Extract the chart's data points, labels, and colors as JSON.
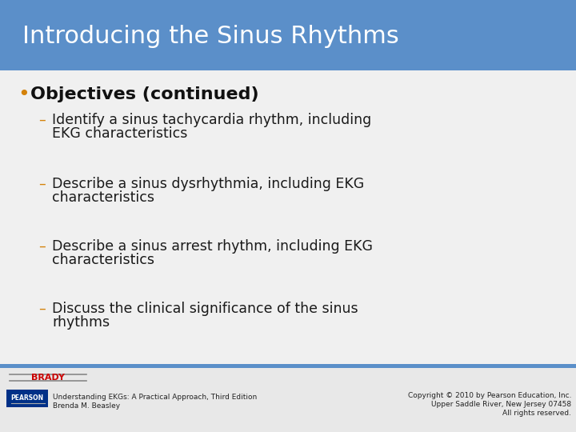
{
  "title": "Introducing the Sinus Rhythms",
  "title_bg_color": "#5b8fc9",
  "title_text_color": "#ffffff",
  "slide_bg_color": "#f0f0f0",
  "bullet_header": "Objectives (continued)",
  "bullet_color": "#d4820a",
  "dash_color": "#d4820a",
  "body_text_color": "#1a1a1a",
  "header_text_color": "#111111",
  "items": [
    [
      "Identify a sinus tachycardia rhythm, including",
      "EKG characteristics"
    ],
    [
      "Describe a sinus dysrhythmia, including EKG",
      "characteristics"
    ],
    [
      "Describe a sinus arrest rhythm, including EKG",
      "characteristics"
    ],
    [
      "Discuss the clinical significance of the sinus",
      "rhythms"
    ]
  ],
  "footer_left_line1": "Understanding EKGs: A Practical Approach, Third Edition",
  "footer_left_line2": "Brenda M. Beasley",
  "footer_right_line1": "Copyright © 2010 by Pearson Education, Inc.",
  "footer_right_line2": "Upper Saddle River, New Jersey 07458",
  "footer_right_line3": "All rights reserved.",
  "footer_bar_color": "#5b8fc9",
  "footer_text_color": "#222222",
  "pearson_box_color": "#003087",
  "brady_text_color": "#cc0000",
  "title_bar_height": 88,
  "title_fontsize": 22,
  "bullet_header_fontsize": 16,
  "body_fontsize": 12.5,
  "footer_fontsize": 6.5
}
